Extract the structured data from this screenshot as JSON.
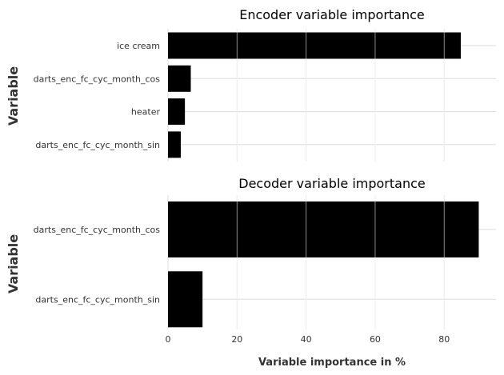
{
  "chart_data": [
    {
      "type": "bar",
      "orientation": "horizontal",
      "title": "Encoder variable importance",
      "ylabel": "Variable",
      "xlabel": "",
      "categories": [
        "ice cream",
        "darts_enc_fc_cyc_month_cos",
        "heater",
        "darts_enc_fc_cyc_month_sin"
      ],
      "values": [
        84.8,
        6.6,
        4.9,
        3.7
      ],
      "xlim": [
        0,
        95
      ],
      "xticks": [
        0,
        20,
        40,
        60,
        80
      ],
      "show_xtick_labels": false,
      "bar_color": "#000000",
      "grid": true
    },
    {
      "type": "bar",
      "orientation": "horizontal",
      "title": "Decoder variable importance",
      "ylabel": "Variable",
      "xlabel": "Variable importance in %",
      "categories": [
        "darts_enc_fc_cyc_month_cos",
        "darts_enc_fc_cyc_month_sin"
      ],
      "values": [
        90.0,
        10.0
      ],
      "xlim": [
        0,
        95
      ],
      "xticks": [
        0,
        20,
        40,
        60,
        80
      ],
      "show_xtick_labels": true,
      "bar_color": "#000000",
      "grid": true
    }
  ]
}
